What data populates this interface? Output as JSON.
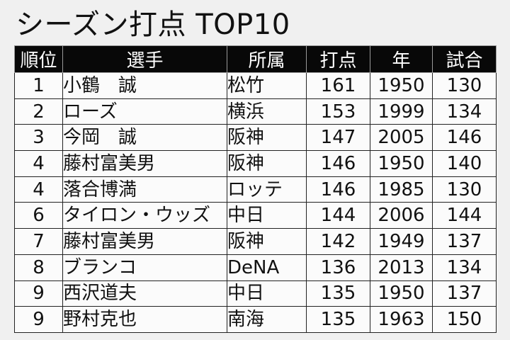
{
  "title": "シーズン打点 TOP10",
  "table": {
    "headers": [
      "順位",
      "選手",
      "所属",
      "打点",
      "年",
      "試合"
    ],
    "rows": [
      {
        "rank": "1",
        "player": "小鶴　誠",
        "team": "松竹",
        "rbi": "161",
        "year": "1950",
        "games": "130"
      },
      {
        "rank": "2",
        "player": "ローズ",
        "team": "横浜",
        "rbi": "153",
        "year": "1999",
        "games": "134"
      },
      {
        "rank": "3",
        "player": "今岡　誠",
        "team": "阪神",
        "rbi": "147",
        "year": "2005",
        "games": "146"
      },
      {
        "rank": "4",
        "player": "藤村富美男",
        "team": "阪神",
        "rbi": "146",
        "year": "1950",
        "games": "140"
      },
      {
        "rank": "4",
        "player": "落合博満",
        "team": "ロッテ",
        "rbi": "146",
        "year": "1985",
        "games": "130"
      },
      {
        "rank": "6",
        "player": "タイロン・ウッズ",
        "team": "中日",
        "rbi": "144",
        "year": "2006",
        "games": "144"
      },
      {
        "rank": "7",
        "player": "藤村富美男",
        "team": "阪神",
        "rbi": "142",
        "year": "1949",
        "games": "137"
      },
      {
        "rank": "8",
        "player": "ブランコ",
        "team": "DeNA",
        "rbi": "136",
        "year": "2013",
        "games": "134"
      },
      {
        "rank": "9",
        "player": "西沢道夫",
        "team": "中日",
        "rbi": "135",
        "year": "1950",
        "games": "137"
      },
      {
        "rank": "9",
        "player": "野村克也",
        "team": "南海",
        "rbi": "135",
        "year": "1963",
        "games": "150"
      }
    ]
  }
}
